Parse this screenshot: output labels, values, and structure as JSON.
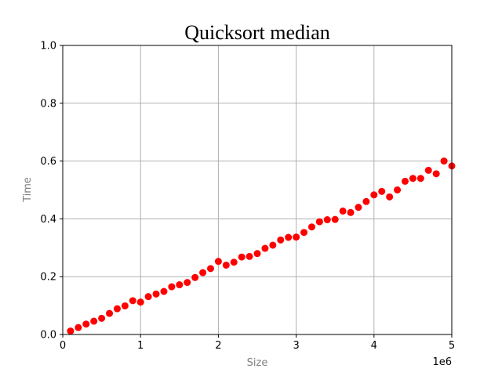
{
  "chart_data": {
    "type": "scatter",
    "title": "Quicksort median",
    "xlabel": "Size",
    "ylabel": "Time",
    "x_offset_label": "1e6",
    "xlim": [
      0,
      5000000
    ],
    "ylim": [
      0,
      1.0
    ],
    "x_ticks": [
      0,
      1000000,
      2000000,
      3000000,
      4000000,
      5000000
    ],
    "x_tick_labels": [
      "0",
      "1",
      "2",
      "3",
      "4",
      "5"
    ],
    "y_ticks": [
      0.0,
      0.2,
      0.4,
      0.6,
      0.8,
      1.0
    ],
    "y_tick_labels": [
      "0.0",
      "0.2",
      "0.4",
      "0.6",
      "0.8",
      "1.0"
    ],
    "grid": true,
    "marker_color": "#ff0000",
    "axis_label_color": "#808080",
    "grid_color": "#b0b0b0",
    "series": [
      {
        "x": [
          100000,
          200000,
          300000,
          400000,
          500000,
          600000,
          700000,
          800000,
          900000,
          1000000,
          1100000,
          1200000,
          1300000,
          1400000,
          1500000,
          1600000,
          1700000,
          1800000,
          1900000,
          2000000,
          2100000,
          2200000,
          2300000,
          2400000,
          2500000,
          2600000,
          2700000,
          2800000,
          2900000,
          3000000,
          3100000,
          3200000,
          3300000,
          3400000,
          3500000,
          3600000,
          3700000,
          3800000,
          3900000,
          4000000,
          4100000,
          4200000,
          4300000,
          4400000,
          4500000,
          4600000,
          4700000,
          4800000,
          4900000,
          5000000
        ],
        "y": [
          0.012,
          0.024,
          0.036,
          0.046,
          0.056,
          0.073,
          0.089,
          0.099,
          0.117,
          0.112,
          0.131,
          0.14,
          0.149,
          0.165,
          0.172,
          0.18,
          0.197,
          0.214,
          0.228,
          0.253,
          0.24,
          0.25,
          0.268,
          0.27,
          0.28,
          0.298,
          0.309,
          0.327,
          0.336,
          0.337,
          0.353,
          0.372,
          0.39,
          0.397,
          0.398,
          0.427,
          0.422,
          0.44,
          0.46,
          0.483,
          0.495,
          0.476,
          0.5,
          0.53,
          0.54,
          0.54,
          0.568,
          0.556,
          0.6,
          0.583
        ]
      }
    ]
  }
}
